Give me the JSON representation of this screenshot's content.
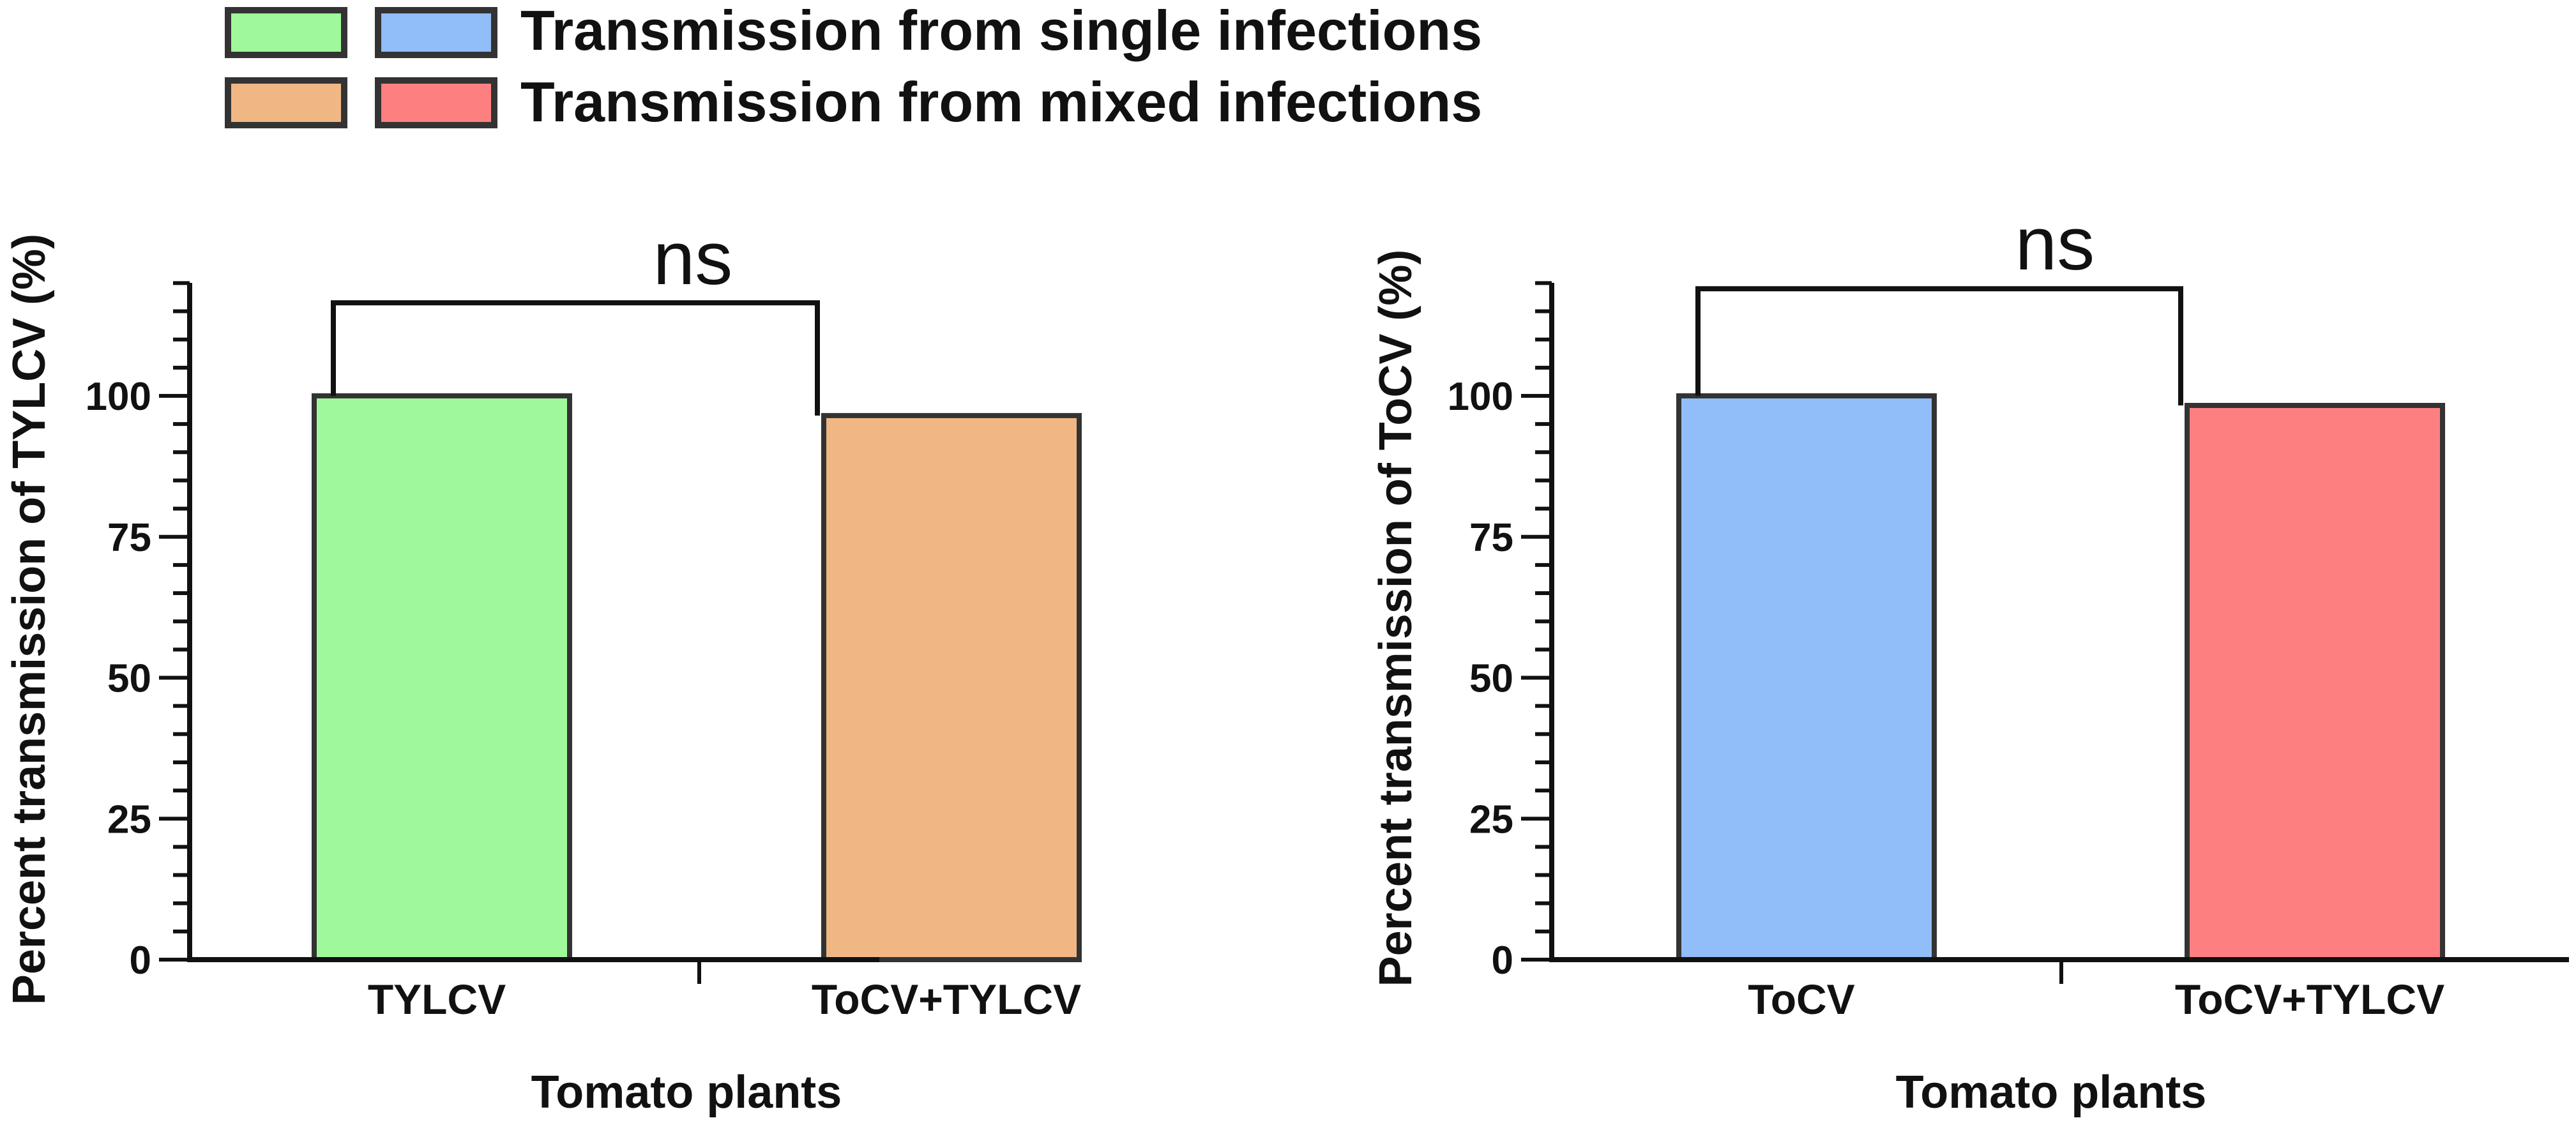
{
  "legend": {
    "rows": [
      {
        "label": "Transmission from single infections",
        "colors": [
          "#9ff99a",
          "#91bdf8"
        ]
      },
      {
        "label": "Transmission from mixed infections",
        "colors": [
          "#f0b784",
          "#fe7f80"
        ]
      }
    ]
  },
  "chart_data": [
    {
      "type": "bar",
      "title": "",
      "xlabel": "Tomato plants",
      "ylabel": "Percent transmission of TYLCV (%)",
      "categories": [
        "TYLCV",
        "ToCV+TYLCV"
      ],
      "values": [
        100,
        96.5
      ],
      "colors": [
        "#9ff99a",
        "#f0b784"
      ],
      "ylim": [
        0,
        120
      ],
      "yticks": [
        "0",
        "25",
        "50",
        "75",
        "100"
      ],
      "significance": {
        "label": "ns",
        "level": 116.5
      }
    },
    {
      "type": "bar",
      "title": "",
      "xlabel": "Tomato plants",
      "ylabel": "Percent transmission of ToCV (%)",
      "categories": [
        "ToCV",
        "ToCV+TYLCV"
      ],
      "values": [
        100,
        98.3
      ],
      "colors": [
        "#91bdf8",
        "#fe7f80"
      ],
      "ylim": [
        0,
        120
      ],
      "yticks": [
        "0",
        "25",
        "50",
        "75",
        "100"
      ],
      "significance": {
        "label": "ns",
        "level": 119
      }
    }
  ]
}
